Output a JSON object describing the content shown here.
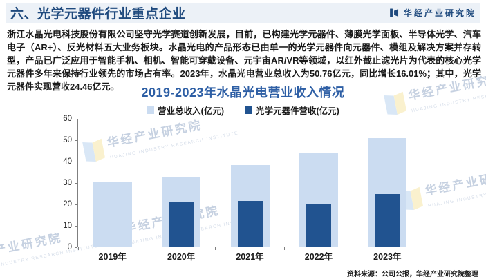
{
  "header": {
    "title": "六、光学元器件行业重点企业",
    "logo_text": "华经产业研究院"
  },
  "body_paragraph": "浙江水晶光电科技股份有限公司坚守光学赛道创新发展，目前，已构建光学元器件、薄膜光学面板、半导体光学、汽车电子（AR+）、反光材料五大业务板块。水晶光电的产品形态已由单一的光学元器件向元器件、模组及解决方案并存转型，产品已广泛应用于智能手机、相机、智能可穿戴设备、元宇宙AR/VR等领域，以红外截止滤光片为代表的核心光学元器件多年来保持行业领先的市场占有率。2023年，水晶光电营业总收入为50.76亿元，同比增长16.01%；其中，光学元器件实现营收24.46亿元。",
  "chart_data": {
    "type": "bar",
    "title": "2019-2023年水晶光电营业收入情况",
    "categories": [
      "2019年",
      "2020年",
      "2021年",
      "2022年",
      "2023年"
    ],
    "series": [
      {
        "name": "营业总收入(亿元)",
        "color": "#CBDCF1",
        "values": [
          30.3,
          32.4,
          38.1,
          43.8,
          50.76
        ]
      },
      {
        "name": "光学元器件营收(亿元)",
        "color": "#215390",
        "values": [
          null,
          20.9,
          21.2,
          19.9,
          24.46
        ]
      }
    ],
    "xlabel": "",
    "ylabel": "",
    "ylim": [
      0,
      60
    ],
    "yticks": [
      0,
      10,
      20,
      30,
      40,
      50,
      60
    ],
    "grid": false,
    "legend_position": "top",
    "bar_style": "overlapped"
  },
  "source_note": "资料来源：公司公报，华经产业研究院整理",
  "watermark": {
    "text": "华经产业研究院",
    "subtext": "HUAJING INDUSTRY RESEARCH INSTITUTE"
  },
  "colors": {
    "header_bg": "#ECF1F7",
    "navy": "#1F4A7E",
    "chart_title_blue": "#2E5FA5",
    "axis_gray": "#7f7f7f",
    "bar_light": "#CBDCF1",
    "bar_dark": "#215390"
  }
}
